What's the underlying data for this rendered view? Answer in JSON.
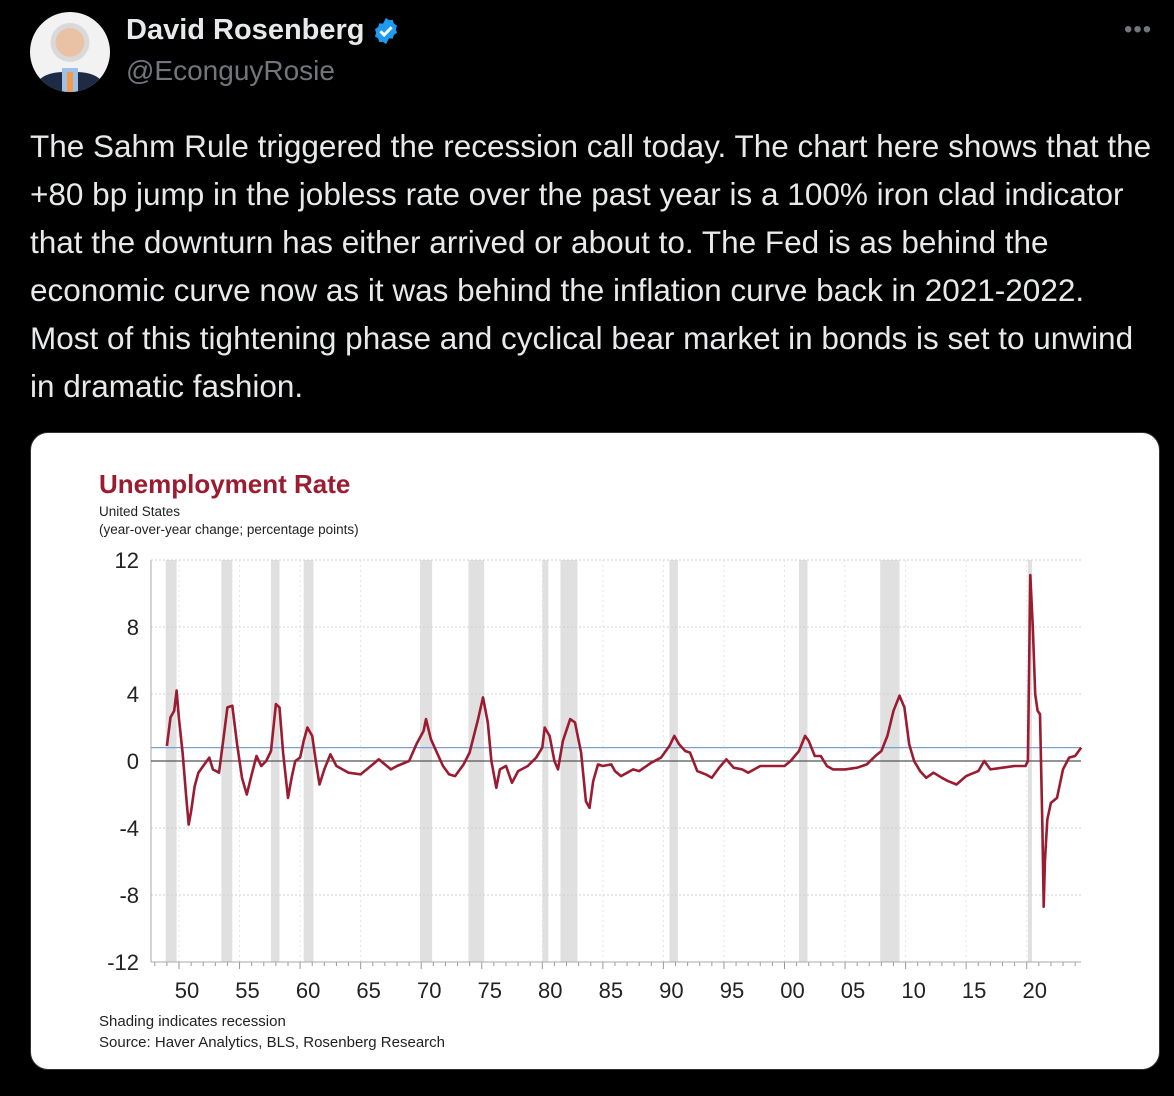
{
  "author": {
    "name": "David Rosenberg",
    "handle": "@EconguyRosie",
    "verified": true
  },
  "menu_icon": "more-horizontal-icon",
  "tweet_text": "The Sahm Rule triggered the recession call today.  The chart here shows that the +80 bp jump in the jobless rate over the past year is a 100% iron clad indicator that the downturn has either arrived or about to.  The Fed is as behind the economic curve now as it was behind the inflation curve back in 2021-2022.  Most of this tightening phase and cyclical bear market in bonds is set to unwind in dramatic fashion.",
  "colors": {
    "line": "#9b1b30",
    "reference": "#7f9fd0",
    "recession": "#e0e0e0",
    "verified": "#1d9bf0"
  },
  "chart_data": {
    "type": "line",
    "title": "Unemployment Rate",
    "subtitle": [
      "United States",
      "(year-over-year change; percentage points)"
    ],
    "footnotes": [
      "Shading indicates recession",
      "Source: Haver Analytics, BLS, Rosenberg Research"
    ],
    "ylim": [
      -12,
      12
    ],
    "yticks": [
      12,
      8,
      4,
      0,
      -4,
      -8,
      -12
    ],
    "ytick_labels": [
      "12",
      "8",
      "4",
      "0",
      "-4",
      "-8",
      "-12"
    ],
    "xlim": [
      1947.8,
      2024.6
    ],
    "xticks": [
      1950,
      1955,
      1960,
      1965,
      1970,
      1975,
      1980,
      1985,
      1990,
      1995,
      2000,
      2005,
      2010,
      2015,
      2020
    ],
    "xtick_labels": [
      "50",
      "55",
      "60",
      "65",
      "70",
      "75",
      "80",
      "85",
      "90",
      "95",
      "00",
      "05",
      "10",
      "15",
      "20"
    ],
    "reference_line": 0.8,
    "recessions": [
      [
        1948.9,
        1949.8
      ],
      [
        1953.5,
        1954.4
      ],
      [
        1957.6,
        1958.3
      ],
      [
        1960.3,
        1961.1
      ],
      [
        1969.9,
        1970.9
      ],
      [
        1973.9,
        1975.2
      ],
      [
        1980.0,
        1980.5
      ],
      [
        1981.5,
        1982.9
      ],
      [
        1990.5,
        1991.2
      ],
      [
        2001.2,
        2001.9
      ],
      [
        2007.9,
        2009.5
      ],
      [
        2020.1,
        2020.4
      ]
    ],
    "series": [
      {
        "name": "Unemployment Rate YoY change",
        "points": [
          [
            1949.0,
            0.9
          ],
          [
            1949.3,
            2.6
          ],
          [
            1949.6,
            3.0
          ],
          [
            1949.8,
            4.2
          ],
          [
            1950.0,
            2.5
          ],
          [
            1950.3,
            0.5
          ],
          [
            1950.6,
            -2.2
          ],
          [
            1950.8,
            -3.8
          ],
          [
            1951.0,
            -3.0
          ],
          [
            1951.3,
            -1.5
          ],
          [
            1951.6,
            -0.7
          ],
          [
            1952.0,
            -0.3
          ],
          [
            1952.5,
            0.2
          ],
          [
            1952.8,
            -0.5
          ],
          [
            1953.3,
            -0.7
          ],
          [
            1953.7,
            1.5
          ],
          [
            1954.0,
            3.2
          ],
          [
            1954.4,
            3.3
          ],
          [
            1954.8,
            1.0
          ],
          [
            1955.2,
            -1.0
          ],
          [
            1955.6,
            -2.0
          ],
          [
            1956.0,
            -0.8
          ],
          [
            1956.4,
            0.3
          ],
          [
            1956.8,
            -0.3
          ],
          [
            1957.2,
            0.0
          ],
          [
            1957.6,
            0.6
          ],
          [
            1958.0,
            3.4
          ],
          [
            1958.3,
            3.2
          ],
          [
            1958.6,
            0.5
          ],
          [
            1959.0,
            -2.2
          ],
          [
            1959.3,
            -1.0
          ],
          [
            1959.6,
            0.0
          ],
          [
            1960.0,
            0.2
          ],
          [
            1960.3,
            1.2
          ],
          [
            1960.6,
            2.0
          ],
          [
            1961.0,
            1.5
          ],
          [
            1961.3,
            0.0
          ],
          [
            1961.6,
            -1.4
          ],
          [
            1962.0,
            -0.5
          ],
          [
            1962.5,
            0.4
          ],
          [
            1963.0,
            -0.3
          ],
          [
            1963.5,
            -0.5
          ],
          [
            1964.0,
            -0.7
          ],
          [
            1965.0,
            -0.8
          ],
          [
            1966.0,
            -0.2
          ],
          [
            1966.5,
            0.1
          ],
          [
            1967.0,
            -0.2
          ],
          [
            1967.5,
            -0.5
          ],
          [
            1968.0,
            -0.3
          ],
          [
            1969.0,
            0.0
          ],
          [
            1969.6,
            1.0
          ],
          [
            1970.2,
            1.8
          ],
          [
            1970.4,
            2.5
          ],
          [
            1970.8,
            1.3
          ],
          [
            1971.3,
            0.5
          ],
          [
            1971.8,
            -0.3
          ],
          [
            1972.3,
            -0.8
          ],
          [
            1972.8,
            -0.9
          ],
          [
            1973.5,
            -0.2
          ],
          [
            1974.0,
            0.5
          ],
          [
            1974.7,
            2.5
          ],
          [
            1975.1,
            3.8
          ],
          [
            1975.5,
            2.3
          ],
          [
            1975.8,
            0.0
          ],
          [
            1976.2,
            -1.6
          ],
          [
            1976.5,
            -0.5
          ],
          [
            1977.0,
            -0.3
          ],
          [
            1977.5,
            -1.3
          ],
          [
            1978.0,
            -0.6
          ],
          [
            1978.8,
            -0.3
          ],
          [
            1979.5,
            0.2
          ],
          [
            1980.0,
            0.8
          ],
          [
            1980.2,
            2.0
          ],
          [
            1980.6,
            1.5
          ],
          [
            1981.0,
            0.0
          ],
          [
            1981.3,
            -0.5
          ],
          [
            1981.7,
            1.2
          ],
          [
            1982.3,
            2.5
          ],
          [
            1982.7,
            2.3
          ],
          [
            1983.2,
            0.5
          ],
          [
            1983.6,
            -2.4
          ],
          [
            1983.9,
            -2.8
          ],
          [
            1984.2,
            -1.2
          ],
          [
            1984.6,
            -0.2
          ],
          [
            1985.0,
            -0.3
          ],
          [
            1985.7,
            -0.2
          ],
          [
            1986.0,
            -0.6
          ],
          [
            1986.5,
            -0.9
          ],
          [
            1987.0,
            -0.7
          ],
          [
            1987.5,
            -0.5
          ],
          [
            1988.0,
            -0.6
          ],
          [
            1989.0,
            -0.1
          ],
          [
            1989.8,
            0.2
          ],
          [
            1990.5,
            0.9
          ],
          [
            1990.9,
            1.5
          ],
          [
            1991.3,
            1.0
          ],
          [
            1991.8,
            0.6
          ],
          [
            1992.2,
            0.5
          ],
          [
            1992.8,
            -0.6
          ],
          [
            1993.5,
            -0.8
          ],
          [
            1994.0,
            -1.0
          ],
          [
            1994.6,
            -0.4
          ],
          [
            1995.2,
            0.1
          ],
          [
            1995.8,
            -0.4
          ],
          [
            1996.5,
            -0.5
          ],
          [
            1997.0,
            -0.7
          ],
          [
            1997.5,
            -0.5
          ],
          [
            1998.0,
            -0.3
          ],
          [
            1999.0,
            -0.3
          ],
          [
            2000.0,
            -0.3
          ],
          [
            2000.5,
            0.0
          ],
          [
            2001.2,
            0.6
          ],
          [
            2001.7,
            1.5
          ],
          [
            2002.0,
            1.2
          ],
          [
            2002.5,
            0.3
          ],
          [
            2003.0,
            0.3
          ],
          [
            2003.5,
            -0.3
          ],
          [
            2004.0,
            -0.5
          ],
          [
            2005.0,
            -0.5
          ],
          [
            2006.0,
            -0.4
          ],
          [
            2006.8,
            -0.2
          ],
          [
            2007.5,
            0.3
          ],
          [
            2008.0,
            0.6
          ],
          [
            2008.5,
            1.5
          ],
          [
            2009.0,
            3.0
          ],
          [
            2009.5,
            3.9
          ],
          [
            2009.9,
            3.2
          ],
          [
            2010.3,
            1.0
          ],
          [
            2010.7,
            0.0
          ],
          [
            2011.2,
            -0.6
          ],
          [
            2011.7,
            -1.0
          ],
          [
            2012.3,
            -0.7
          ],
          [
            2013.0,
            -1.0
          ],
          [
            2013.5,
            -1.2
          ],
          [
            2014.2,
            -1.4
          ],
          [
            2015.0,
            -0.9
          ],
          [
            2016.0,
            -0.6
          ],
          [
            2016.5,
            0.0
          ],
          [
            2017.0,
            -0.5
          ],
          [
            2018.0,
            -0.4
          ],
          [
            2019.0,
            -0.3
          ],
          [
            2019.9,
            -0.3
          ],
          [
            2020.1,
            0.0
          ],
          [
            2020.3,
            11.1
          ],
          [
            2020.5,
            8.0
          ],
          [
            2020.7,
            4.0
          ],
          [
            2020.9,
            3.0
          ],
          [
            2021.1,
            2.8
          ],
          [
            2021.3,
            -4.0
          ],
          [
            2021.4,
            -8.7
          ],
          [
            2021.5,
            -6.0
          ],
          [
            2021.7,
            -3.5
          ],
          [
            2022.0,
            -2.5
          ],
          [
            2022.5,
            -2.2
          ],
          [
            2023.0,
            -0.5
          ],
          [
            2023.5,
            0.2
          ],
          [
            2024.0,
            0.3
          ],
          [
            2024.5,
            0.8
          ]
        ]
      }
    ]
  }
}
